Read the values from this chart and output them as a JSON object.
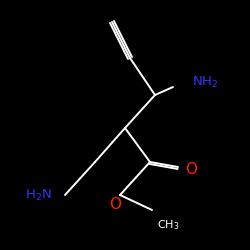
{
  "background": "#000000",
  "bond_color": "#ffffff",
  "nh2_color": "#3333ff",
  "o_color": "#ff2000",
  "figsize": [
    2.5,
    2.5
  ],
  "dpi": 100,
  "lw": 1.4
}
